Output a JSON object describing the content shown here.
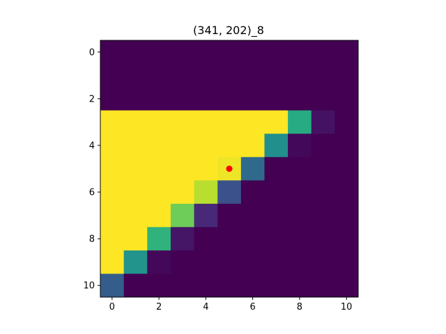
{
  "chart_data": {
    "type": "heatmap",
    "title": "(341, 202)_8",
    "xlabel": "",
    "ylabel": "",
    "colormap": "viridis",
    "vmin": 0,
    "vmax": 1,
    "xlim": [
      -0.5,
      10.5
    ],
    "ylim": [
      10.5,
      -0.5
    ],
    "grid": false,
    "x_ticks": [
      "0",
      "2",
      "4",
      "6",
      "8",
      "10"
    ],
    "y_ticks": [
      "0",
      "2",
      "4",
      "6",
      "8",
      "10"
    ],
    "matrix": [
      [
        0,
        0,
        0,
        0,
        0,
        0,
        0,
        0,
        0,
        0,
        0
      ],
      [
        0,
        0,
        0,
        0,
        0,
        0,
        0,
        0,
        0,
        0,
        0
      ],
      [
        0,
        0,
        0,
        0,
        0,
        0,
        0,
        0,
        0,
        0,
        0
      ],
      [
        1,
        1,
        1,
        1,
        1,
        1,
        1,
        1,
        0.62,
        0.05,
        0
      ],
      [
        1,
        1,
        1,
        1,
        1,
        1,
        1,
        0.5,
        0.02,
        0,
        0
      ],
      [
        1,
        1,
        1,
        1,
        1,
        0.98,
        0.35,
        0,
        0,
        0,
        0
      ],
      [
        1,
        1,
        1,
        1,
        0.9,
        0.25,
        0,
        0,
        0,
        0,
        0
      ],
      [
        1,
        1,
        1,
        0.78,
        0.12,
        0,
        0,
        0,
        0,
        0,
        0
      ],
      [
        1,
        1,
        0.65,
        0.06,
        0,
        0,
        0,
        0,
        0,
        0,
        0
      ],
      [
        1,
        0.52,
        0.02,
        0,
        0,
        0,
        0,
        0,
        0,
        0,
        0
      ],
      [
        0.3,
        0,
        0,
        0,
        0,
        0,
        0,
        0,
        0,
        0,
        0
      ]
    ],
    "marker": {
      "x": 5,
      "y": 5,
      "color": "#ff0000"
    }
  }
}
